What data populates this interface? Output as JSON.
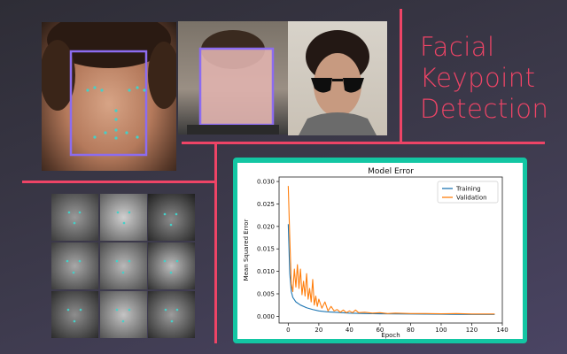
{
  "title": {
    "lines": [
      "Facial",
      "Keypoint",
      "Detection"
    ]
  },
  "colors": {
    "accent": "#ee4466",
    "chart_panel": "#13c6a3",
    "training": "#1f77b4",
    "validation": "#ff7f0e"
  },
  "chart_data": {
    "type": "line",
    "title": "Model Error",
    "xlabel": "Epoch",
    "ylabel": "Mean Squared Error",
    "xlim": [
      -6,
      140
    ],
    "ylim": [
      -0.0015,
      0.031
    ],
    "xticks": [
      "0",
      "20",
      "40",
      "60",
      "80",
      "100",
      "120",
      "140"
    ],
    "yticks": [
      "0.000",
      "0.005",
      "0.010",
      "0.015",
      "0.020",
      "0.025",
      "0.030"
    ],
    "legend": "top-right",
    "grid": false,
    "series": [
      {
        "name": "Training",
        "color": "#1f77b4",
        "x": [
          0,
          1,
          2,
          3,
          5,
          8,
          12,
          16,
          20,
          25,
          30,
          40,
          50,
          60,
          80,
          100,
          120,
          135
        ],
        "y": [
          0.0205,
          0.0095,
          0.0055,
          0.0042,
          0.0032,
          0.0025,
          0.0019,
          0.0015,
          0.0012,
          0.001,
          0.0009,
          0.0007,
          0.0006,
          0.00055,
          0.0005,
          0.00045,
          0.0004,
          0.0004
        ]
      },
      {
        "name": "Validation",
        "color": "#ff7f0e",
        "x": [
          0,
          1,
          2,
          3,
          4,
          5,
          6,
          7,
          8,
          9,
          10,
          11,
          12,
          13,
          14,
          15,
          16,
          17,
          18,
          19,
          20,
          22,
          24,
          26,
          28,
          30,
          32,
          34,
          36,
          38,
          40,
          42,
          44,
          46,
          50,
          55,
          60,
          65,
          70,
          80,
          90,
          100,
          110,
          120,
          130,
          135
        ],
        "y": [
          0.029,
          0.0175,
          0.0072,
          0.0055,
          0.0105,
          0.0065,
          0.0115,
          0.0062,
          0.0105,
          0.0048,
          0.0078,
          0.0045,
          0.0095,
          0.0038,
          0.0062,
          0.0032,
          0.0082,
          0.0025,
          0.0045,
          0.0022,
          0.0038,
          0.0018,
          0.0032,
          0.0012,
          0.0022,
          0.0012,
          0.0015,
          0.0009,
          0.0014,
          0.0008,
          0.0012,
          0.0008,
          0.0014,
          0.0008,
          0.0009,
          0.0007,
          0.0008,
          0.0006,
          0.0007,
          0.0006,
          0.0006,
          0.00055,
          0.0006,
          0.0005,
          0.0005,
          0.0005
        ]
      }
    ]
  }
}
